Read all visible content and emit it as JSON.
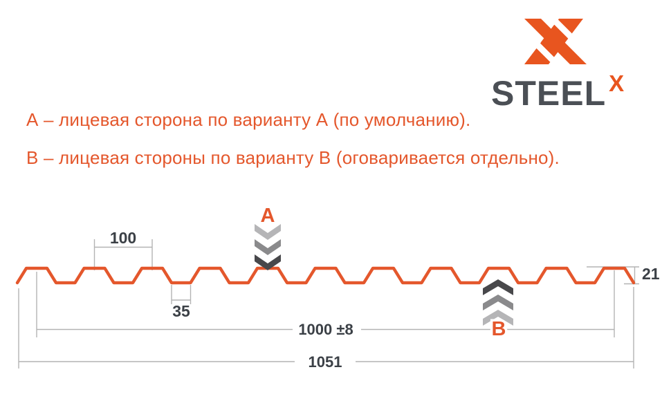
{
  "palette": {
    "accent": "#E4572C",
    "logo_orange": "#E8551F",
    "steel_gray": "#4B4F55",
    "dim_line": "#B3B3B3",
    "dim_text": "#3B4046",
    "chevron_light": "#B5B5B7",
    "chevron_mid": "#8A8A8C",
    "chevron_dark": "#48484B"
  },
  "logo": {
    "wordmark": "STEEL",
    "wordmark_sup": "X"
  },
  "notes": {
    "variant_a": "А – лицевая сторона по варианту А (по умолчанию).",
    "variant_b": "В – лицевая стороны по варианту В (оговаривается отдельно)."
  },
  "diagram": {
    "markers": {
      "a_label": "А",
      "b_label": "В"
    },
    "dimensions": {
      "pitch": "100",
      "trough_width": "35",
      "working_width": "1000 ±8",
      "overall_width": "1051",
      "profile_height": "21"
    }
  }
}
